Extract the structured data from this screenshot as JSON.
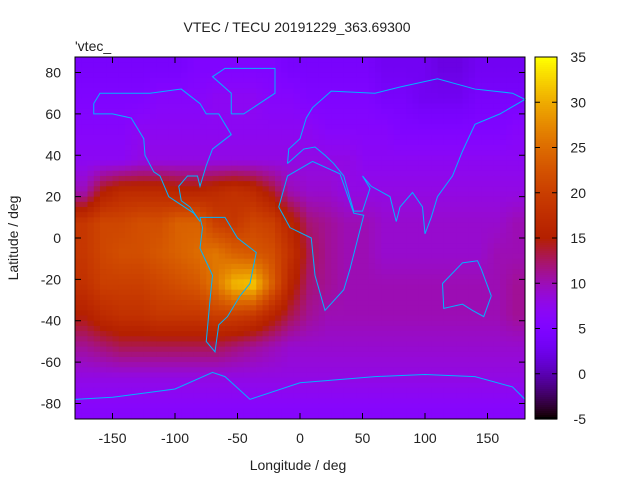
{
  "chart_data": {
    "type": "heatmap",
    "title": "VTEC / TECU 20191229_363.69300",
    "xlabel": "Longitude / deg",
    "ylabel": "Latitude / deg",
    "key_label": "'vtec_",
    "xlim": [
      -180,
      180
    ],
    "ylim": [
      -87.5,
      87.5
    ],
    "xticks": [
      -150,
      -100,
      -50,
      0,
      50,
      100,
      150
    ],
    "yticks": [
      80,
      60,
      40,
      20,
      0,
      -20,
      -40,
      -60,
      -80
    ],
    "cbrange": [
      -5,
      35
    ],
    "cbticks": [
      35,
      30,
      25,
      20,
      15,
      10,
      5,
      0,
      -5
    ],
    "palette": "rgbformulae 7,5,15",
    "coastline_color": "#00b4ff",
    "lat": [
      82.5,
      67.5,
      52.5,
      37.5,
      22.5,
      7.5,
      -7.5,
      -22.5,
      -37.5,
      -52.5,
      -67.5,
      -82.5
    ],
    "lon": [
      -172.5,
      -157.5,
      -142.5,
      -127.5,
      -112.5,
      -97.5,
      -82.5,
      -67.5,
      -52.5,
      -37.5,
      -22.5,
      -7.5,
      7.5,
      22.5,
      37.5,
      52.5,
      67.5,
      82.5,
      97.5,
      112.5,
      127.5,
      142.5,
      157.5,
      172.5
    ],
    "values": [
      [
        4,
        4,
        4,
        4,
        4,
        4,
        5,
        5,
        5,
        5,
        5,
        4,
        4,
        4,
        4,
        4,
        3,
        3,
        3,
        2,
        2,
        3,
        3,
        3
      ],
      [
        5,
        5,
        5,
        5,
        6,
        6,
        6,
        7,
        7,
        7,
        6,
        6,
        5,
        5,
        5,
        5,
        4,
        4,
        3,
        3,
        3,
        4,
        4,
        4
      ],
      [
        6,
        6,
        6,
        7,
        7,
        7,
        7,
        7,
        7,
        7,
        7,
        7,
        7,
        6,
        6,
        6,
        6,
        5,
        5,
        5,
        5,
        5,
        5,
        6
      ],
      [
        7,
        7,
        7,
        8,
        8,
        8,
        8,
        8,
        8,
        8,
        8,
        8,
        8,
        8,
        8,
        7,
        7,
        7,
        7,
        7,
        7,
        7,
        7,
        7
      ],
      [
        10,
        15,
        17,
        17,
        17,
        16,
        16,
        17,
        18,
        17,
        14,
        10,
        9,
        9,
        8,
        8,
        8,
        8,
        8,
        8,
        8,
        8,
        8,
        8
      ],
      [
        19,
        21,
        21,
        22,
        22,
        24,
        24,
        20,
        19,
        21,
        20,
        16,
        12,
        11,
        10,
        10,
        9,
        9,
        9,
        9,
        9,
        9,
        9,
        10
      ],
      [
        19,
        21,
        22,
        22,
        23,
        24,
        25,
        26,
        24,
        23,
        22,
        18,
        13,
        11,
        10,
        10,
        9,
        9,
        9,
        9,
        9,
        9,
        10,
        10
      ],
      [
        18,
        20,
        20,
        20,
        21,
        22,
        23,
        26,
        31,
        32,
        24,
        16,
        12,
        11,
        10,
        10,
        10,
        10,
        10,
        10,
        10,
        10,
        10,
        11
      ],
      [
        15,
        17,
        18,
        18,
        19,
        19,
        19,
        20,
        20,
        19,
        16,
        13,
        11,
        10,
        10,
        10,
        10,
        10,
        10,
        10,
        10,
        10,
        10,
        11
      ],
      [
        11,
        12,
        13,
        13,
        13,
        13,
        13,
        13,
        12,
        11,
        10,
        9,
        9,
        9,
        9,
        9,
        9,
        9,
        9,
        9,
        9,
        9,
        9,
        9
      ],
      [
        8,
        8,
        8,
        8,
        8,
        8,
        8,
        8,
        8,
        8,
        8,
        8,
        8,
        8,
        8,
        8,
        8,
        8,
        8,
        8,
        8,
        8,
        8,
        8
      ],
      [
        6,
        6,
        6,
        6,
        6,
        6,
        6,
        6,
        6,
        6,
        6,
        6,
        6,
        6,
        6,
        6,
        6,
        6,
        6,
        6,
        6,
        6,
        6,
        6
      ]
    ]
  }
}
